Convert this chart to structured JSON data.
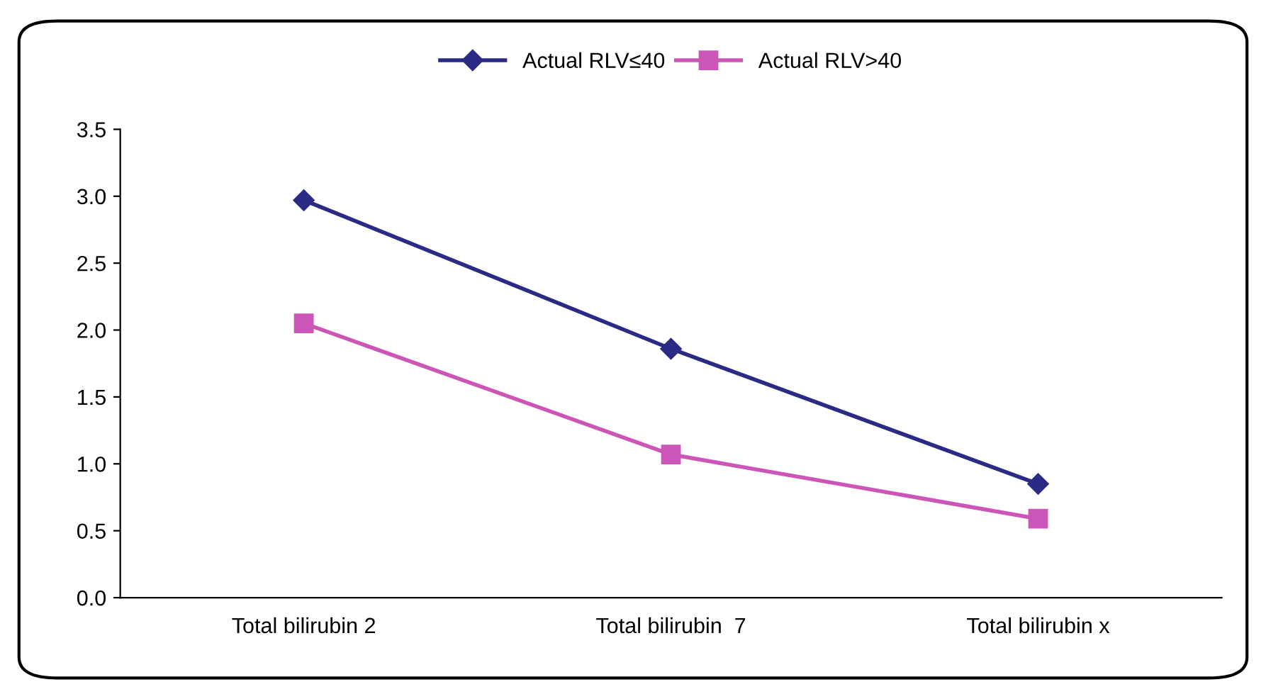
{
  "chart_data": {
    "type": "line",
    "categories": [
      "Total bilirubin 2",
      "Total bilirubin  7",
      "Total bilirubin x"
    ],
    "series": [
      {
        "name": "Actual RLV≤40",
        "color": "#2b2b85",
        "values": [
          2.97,
          1.86,
          0.85
        ],
        "marker": "diamond"
      },
      {
        "name": "Actual RLV>40",
        "color": "#cc55b8",
        "values": [
          2.05,
          1.07,
          0.59
        ],
        "marker": "square"
      }
    ],
    "ylim": [
      0,
      3.5
    ],
    "yticks": [
      {
        "value": 0,
        "label": "0.0"
      },
      {
        "value": 0.5,
        "label": "0.5"
      },
      {
        "value": 1,
        "label": "1.0"
      },
      {
        "value": 1.5,
        "label": "1.5"
      },
      {
        "value": 2,
        "label": "2.0"
      },
      {
        "value": 2.5,
        "label": "2.5"
      },
      {
        "value": 3,
        "label": "3.0"
      },
      {
        "value": 3.5,
        "label": "3.5"
      }
    ],
    "grid": false,
    "legend": "top",
    "line_style": "solid"
  }
}
